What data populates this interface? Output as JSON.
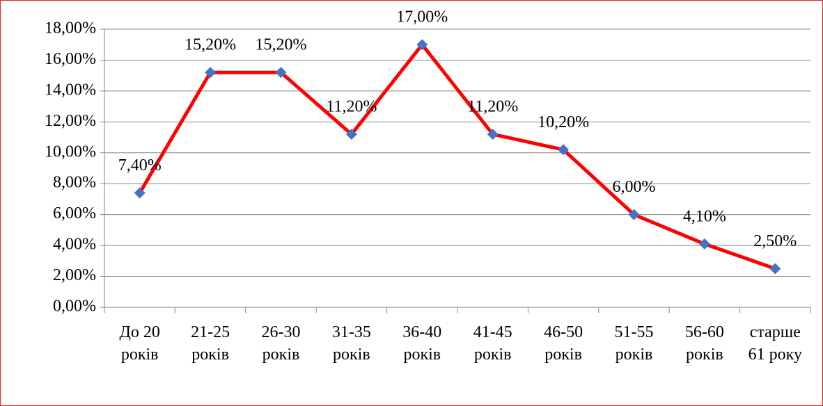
{
  "chart_data": {
    "type": "line",
    "categories": [
      "До 20 років",
      "21-25 років",
      "26-30 років",
      "31-35 років",
      "36-40 років",
      "41-45 років",
      "46-50 років",
      "51-55 років",
      "56-60 років",
      "старше 61 року"
    ],
    "series": [
      {
        "color": "#ff0000",
        "marker_color": "#4472c4",
        "values": [
          7.4,
          15.2,
          15.2,
          11.2,
          17.0,
          11.2,
          10.2,
          6.0,
          4.1,
          2.5
        ],
        "value_labels": [
          "7,40%",
          "15,20%",
          "15,20%",
          "11,20%",
          "17,00%",
          "11,20%",
          "10,20%",
          "6,00%",
          "4,10%",
          "2,50%"
        ]
      }
    ],
    "ylim": [
      0,
      18
    ],
    "yticks": [
      {
        "value": 0,
        "label": "0,00%"
      },
      {
        "value": 2,
        "label": "2,00%"
      },
      {
        "value": 4,
        "label": "4,00%"
      },
      {
        "value": 6,
        "label": "6,00%"
      },
      {
        "value": 8,
        "label": "8,00%"
      },
      {
        "value": 10,
        "label": "10,00%"
      },
      {
        "value": 12,
        "label": "12,00%"
      },
      {
        "value": 14,
        "label": "14,00%"
      },
      {
        "value": 16,
        "label": "16,00%"
      },
      {
        "value": 18,
        "label": "18,00%"
      }
    ],
    "grid": true
  }
}
